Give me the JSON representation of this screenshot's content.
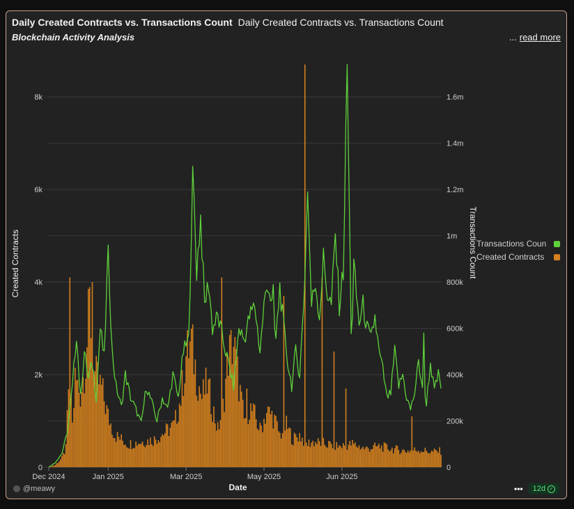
{
  "header": {
    "title": "Daily Created Contracts vs. Transactions Count",
    "title_repeat": "Daily Created Contracts vs. Transactions Count",
    "subtitle": "Blockchain Activity Analysis",
    "more_dots": "...",
    "read_more": "read more"
  },
  "footer": {
    "user": "@meawy",
    "dots": "•••",
    "badge": "12d"
  },
  "colors": {
    "transactions": "#5fd13b",
    "contracts": "#d4801e",
    "grid": "#3a3a3a",
    "text": "#cfcfcf"
  },
  "chart_data": {
    "type": "bar+line",
    "title": "Daily Created Contracts vs. Transactions Count",
    "xlabel": "Date",
    "ylabel_left": "Created Contracts",
    "ylabel_right": "Transactions Count",
    "ylim_left": [
      0,
      8800
    ],
    "ylim_right": [
      0,
      1760000
    ],
    "yticks_left": [
      "0",
      "2k",
      "4k",
      "6k",
      "8k"
    ],
    "yticks_right": [
      "0",
      "200k",
      "400k",
      "600k",
      "800k",
      "1m",
      "1.2m",
      "1.4m",
      "1.6m"
    ],
    "xticks": [
      "Dec 2024",
      "Jan 2025",
      "Mar 2025",
      "May 2025",
      "Jun 2025"
    ],
    "legend": [
      "Transactions Count",
      "Created Contracts"
    ],
    "legend_position": "right",
    "x_start": "2024-12-01",
    "x_end": "2025-07-16",
    "contracts_keypoints": [
      [
        0,
        0
      ],
      [
        5,
        50
      ],
      [
        10,
        200
      ],
      [
        13,
        400
      ],
      [
        16,
        2400
      ],
      [
        18,
        900
      ],
      [
        20,
        1900
      ],
      [
        24,
        1600
      ],
      [
        28,
        2300
      ],
      [
        31,
        3500
      ],
      [
        35,
        2000
      ],
      [
        40,
        1700
      ],
      [
        45,
        1100
      ],
      [
        50,
        700
      ],
      [
        60,
        500
      ],
      [
        70,
        550
      ],
      [
        80,
        600
      ],
      [
        95,
        900
      ],
      [
        100,
        1500
      ],
      [
        104,
        2400
      ],
      [
        108,
        2700
      ],
      [
        112,
        2000
      ],
      [
        116,
        1500
      ],
      [
        120,
        1800
      ],
      [
        124,
        1300
      ],
      [
        128,
        800
      ],
      [
        132,
        1300
      ],
      [
        136,
        2400
      ],
      [
        140,
        2700
      ],
      [
        144,
        1800
      ],
      [
        148,
        1000
      ],
      [
        152,
        1300
      ],
      [
        156,
        1100
      ],
      [
        160,
        800
      ],
      [
        165,
        1200
      ],
      [
        170,
        1100
      ],
      [
        175,
        700
      ],
      [
        180,
        900
      ],
      [
        185,
        600
      ],
      [
        190,
        700
      ],
      [
        195,
        500
      ],
      [
        200,
        550
      ],
      [
        210,
        500
      ],
      [
        220,
        450
      ],
      [
        230,
        500
      ],
      [
        240,
        400
      ],
      [
        250,
        450
      ],
      [
        260,
        400
      ],
      [
        270,
        350
      ],
      [
        280,
        380
      ],
      [
        290,
        330
      ],
      [
        297,
        350
      ]
    ],
    "contracts_spikes": [
      [
        16,
        4100
      ],
      [
        33,
        4000
      ],
      [
        131,
        4100
      ],
      [
        140,
        2600
      ],
      [
        150,
        1700
      ],
      [
        178,
        3700
      ],
      [
        194,
        8700
      ],
      [
        207,
        4100
      ],
      [
        216,
        2500
      ],
      [
        225,
        1700
      ],
      [
        275,
        1100
      ]
    ],
    "transactions_keypoints": [
      [
        0,
        0
      ],
      [
        5,
        20000
      ],
      [
        10,
        60000
      ],
      [
        14,
        150000
      ],
      [
        18,
        350000
      ],
      [
        21,
        580000
      ],
      [
        24,
        300000
      ],
      [
        27,
        500000
      ],
      [
        30,
        380000
      ],
      [
        33,
        450000
      ],
      [
        36,
        300000
      ],
      [
        39,
        600000
      ],
      [
        42,
        470000
      ],
      [
        45,
        950000
      ],
      [
        48,
        500000
      ],
      [
        51,
        350000
      ],
      [
        55,
        260000
      ],
      [
        58,
        400000
      ],
      [
        62,
        300000
      ],
      [
        66,
        250000
      ],
      [
        70,
        190000
      ],
      [
        74,
        350000
      ],
      [
        78,
        280000
      ],
      [
        82,
        200000
      ],
      [
        86,
        300000
      ],
      [
        90,
        250000
      ],
      [
        94,
        400000
      ],
      [
        98,
        300000
      ],
      [
        102,
        500000
      ],
      [
        106,
        550000
      ],
      [
        109,
        1290000
      ],
      [
        112,
        850000
      ],
      [
        115,
        1080000
      ],
      [
        118,
        700000
      ],
      [
        121,
        800000
      ],
      [
        124,
        600000
      ],
      [
        128,
        650000
      ],
      [
        132,
        550000
      ],
      [
        136,
        450000
      ],
      [
        140,
        350000
      ],
      [
        144,
        600000
      ],
      [
        148,
        550000
      ],
      [
        152,
        650000
      ],
      [
        156,
        700000
      ],
      [
        160,
        500000
      ],
      [
        163,
        700000
      ],
      [
        166,
        800000
      ],
      [
        169,
        700000
      ],
      [
        172,
        550000
      ],
      [
        175,
        780000
      ],
      [
        178,
        600000
      ],
      [
        181,
        450000
      ],
      [
        184,
        350000
      ],
      [
        187,
        500000
      ],
      [
        190,
        400000
      ],
      [
        193,
        700000
      ],
      [
        196,
        1180000
      ],
      [
        199,
        700000
      ],
      [
        202,
        800000
      ],
      [
        205,
        650000
      ],
      [
        208,
        900000
      ],
      [
        211,
        750000
      ],
      [
        214,
        700000
      ],
      [
        217,
        1000000
      ],
      [
        220,
        700000
      ],
      [
        223,
        850000
      ],
      [
        226,
        1700000
      ],
      [
        229,
        600000
      ],
      [
        232,
        800000
      ],
      [
        235,
        620000
      ],
      [
        238,
        700000
      ],
      [
        241,
        600000
      ],
      [
        244,
        550000
      ],
      [
        247,
        650000
      ],
      [
        250,
        500000
      ],
      [
        253,
        420000
      ],
      [
        256,
        300000
      ],
      [
        259,
        320000
      ],
      [
        262,
        500000
      ],
      [
        265,
        350000
      ],
      [
        268,
        400000
      ],
      [
        271,
        300000
      ],
      [
        274,
        250000
      ],
      [
        277,
        320000
      ],
      [
        280,
        450000
      ],
      [
        283,
        350000
      ],
      [
        286,
        280000
      ],
      [
        289,
        450000
      ],
      [
        292,
        330000
      ],
      [
        295,
        400000
      ],
      [
        297,
        350000
      ]
    ],
    "transactions_spikes": [
      [
        45,
        960000
      ],
      [
        109,
        1300000
      ],
      [
        115,
        1090000
      ],
      [
        170,
        790000
      ],
      [
        196,
        1190000
      ],
      [
        226,
        1740000
      ],
      [
        231,
        900000
      ],
      [
        284,
        580000
      ]
    ]
  }
}
